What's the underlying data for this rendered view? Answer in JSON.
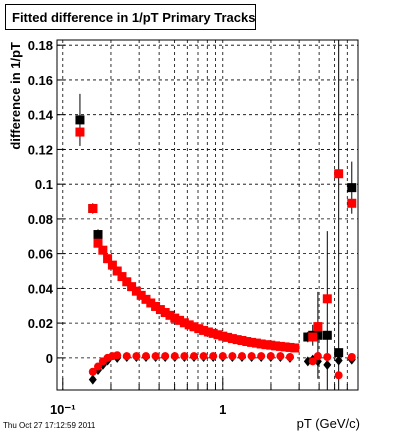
{
  "chart_data": {
    "type": "scatter",
    "title": "Fitted difference in 1/pT  Primary Tracks",
    "ylabel": "difference in 1/pT",
    "xlabel": "pT (GeV/c)",
    "footer": "Thu Oct 27 17:12:59 2011",
    "xlog": true,
    "grid": true,
    "xlim": [
      0.092,
      7
    ],
    "ylim": [
      -0.0185,
      0.183
    ],
    "xticks": [
      {
        "value": 0.1,
        "label": "10⁻¹"
      },
      1
    ],
    "xminor": [
      0.2,
      0.3,
      0.4,
      0.5,
      0.6,
      0.7,
      0.8,
      0.9,
      2,
      3,
      4,
      5,
      6
    ],
    "yticks": [
      0,
      0.02,
      0.04,
      0.06,
      0.08,
      0.1,
      0.12,
      0.14,
      0.16,
      0.18
    ],
    "series": [
      {
        "color": "#000000",
        "marker": "square",
        "x": [
          0.128,
          0.154,
          0.166,
          3.4,
          3.65,
          3.93,
          4.5,
          5.3,
          6.4
        ],
        "values": [
          0.137,
          0.086,
          0.071,
          0.012,
          0.013,
          0.013,
          0.013,
          0.003,
          0.098
        ],
        "errors": [
          0.015,
          0.003,
          0.003,
          0.003,
          0.006,
          0.025,
          0.06,
          0.2,
          0.015
        ]
      },
      {
        "color": "#ff0000",
        "marker": "square",
        "x": [
          0.128,
          0.154,
          0.166,
          0.178,
          0.1905,
          0.2042,
          0.2188,
          0.2344,
          0.2512,
          0.2692,
          0.2884,
          0.309,
          0.3311,
          0.3548,
          0.3802,
          0.4074,
          0.4365,
          0.4677,
          0.5012,
          0.537,
          0.5754,
          0.6166,
          0.6607,
          0.7079,
          0.7586,
          0.8128,
          0.871,
          0.9333,
          1,
          1.072,
          1.148,
          1.23,
          1.318,
          1.413,
          1.514,
          1.622,
          1.738,
          1.862,
          1.995,
          2.138,
          2.291,
          2.455,
          2.63,
          2.818,
          3.65,
          3.93,
          4.5,
          5.3,
          6.4
        ],
        "values": [
          0.13,
          0.086,
          0.066,
          0.062,
          0.0571,
          0.0534,
          0.05,
          0.0468,
          0.0438,
          0.041,
          0.0384,
          0.036,
          0.0337,
          0.0316,
          0.0296,
          0.0278,
          0.0261,
          0.0245,
          0.0229,
          0.0216,
          0.0202,
          0.019,
          0.0179,
          0.0168,
          0.0158,
          0.0149,
          0.0141,
          0.0133,
          0.0125,
          0.0118,
          0.0111,
          0.0105,
          0.01,
          0.0094,
          0.0089,
          0.0085,
          0.008,
          0.0076,
          0.0073,
          0.0069,
          0.0066,
          0.0063,
          0.006,
          0.0057,
          0.012,
          0.018,
          0.034,
          0.106,
          0.089
        ]
      },
      {
        "color": "#000000",
        "marker": "diamond",
        "x": [
          0.154,
          0.166,
          0.178,
          0.1905,
          0.2188,
          0.2512,
          0.2884,
          0.3311,
          0.3802,
          0.4365,
          0.5012,
          0.5754,
          0.6607,
          0.7586,
          0.871,
          1,
          1.148,
          1.318,
          1.514,
          1.738,
          1.995,
          2.291,
          2.63,
          3.4,
          3.65,
          3.93,
          4.5,
          5.3,
          6.4
        ],
        "values": [
          -0.0125,
          -0.007,
          -0.004,
          -0.0015,
          0,
          0.0005,
          0.0005,
          0.0005,
          0.0005,
          0.0005,
          0.0005,
          0.0005,
          0.0005,
          0.0005,
          0.0005,
          0.0005,
          0.0005,
          0.0005,
          0.0005,
          0.0005,
          0.0005,
          0.0005,
          0,
          -0.002,
          -0.001,
          -0.002,
          -0.004,
          -0.0015,
          -0.001
        ]
      },
      {
        "color": "#ff0000",
        "marker": "circle",
        "x": [
          0.154,
          0.166,
          0.178,
          0.1905,
          0.2042,
          0.2188,
          0.2512,
          0.2884,
          0.3311,
          0.3802,
          0.4365,
          0.5012,
          0.5754,
          0.6607,
          0.7586,
          0.871,
          1,
          1.148,
          1.318,
          1.514,
          1.738,
          1.995,
          2.291,
          2.63,
          3.65,
          3.93,
          4.5,
          5.3,
          6.4
        ],
        "values": [
          -0.008,
          -0.005,
          -0.002,
          0,
          0.001,
          0.0015,
          0.001,
          0.001,
          0.001,
          0.001,
          0.001,
          0.001,
          0.001,
          0.001,
          0.001,
          0.001,
          0.001,
          0.001,
          0.001,
          0.001,
          0.001,
          0.001,
          0.001,
          0.0005,
          -0.002,
          0.001,
          0.0005,
          -0.01,
          0.0005
        ]
      }
    ]
  }
}
